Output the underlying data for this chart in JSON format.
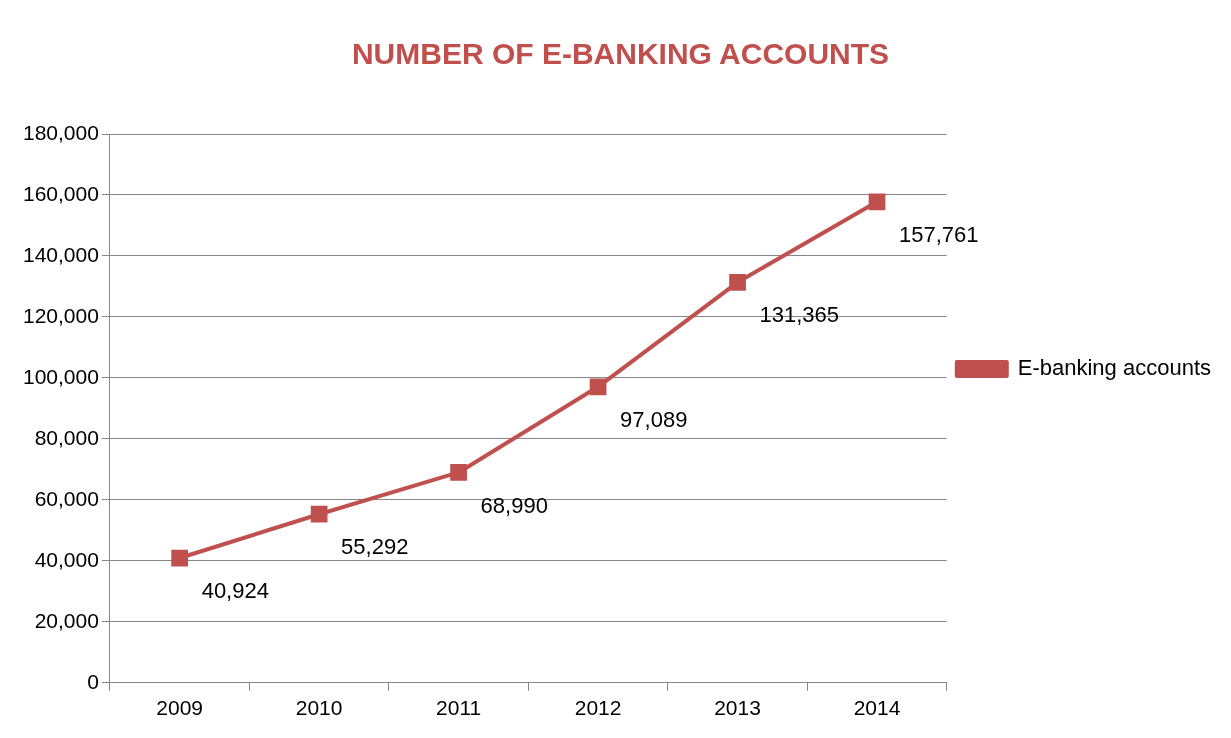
{
  "chart_data": {
    "type": "line",
    "title": "NUMBER OF E-BANKING ACCOUNTS",
    "categories": [
      "2009",
      "2010",
      "2011",
      "2012",
      "2013",
      "2014"
    ],
    "series": [
      {
        "name": "E-banking accounts",
        "color": "#c0504d",
        "values": [
          40924,
          55292,
          68990,
          97089,
          131365,
          157761
        ],
        "value_labels": [
          "40,924",
          "55,292",
          "68,990",
          "97,089",
          "131,365",
          "157,761"
        ]
      }
    ],
    "ylim": [
      0,
      180000
    ],
    "yticks": [
      {
        "value": 0,
        "label": "0"
      },
      {
        "value": 20000,
        "label": "20,000"
      },
      {
        "value": 40000,
        "label": "40,000"
      },
      {
        "value": 60000,
        "label": "60,000"
      },
      {
        "value": 80000,
        "label": "80,000"
      },
      {
        "value": 100000,
        "label": "100,000"
      },
      {
        "value": 120000,
        "label": "120,000"
      },
      {
        "value": 140000,
        "label": "140,000"
      },
      {
        "value": 160000,
        "label": "160,000"
      },
      {
        "value": 180000,
        "label": "180,000"
      }
    ],
    "grid": "y",
    "legend": "right",
    "marker": "square",
    "line_style": "solid"
  }
}
